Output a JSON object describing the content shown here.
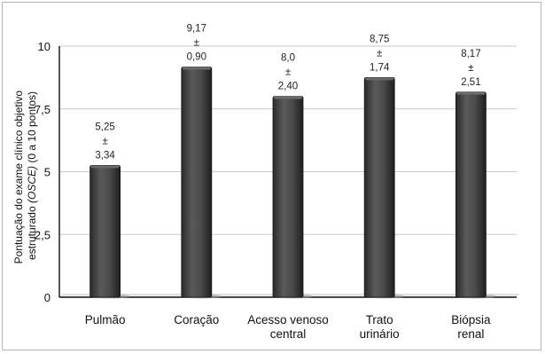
{
  "chart_data": {
    "type": "bar",
    "categories": [
      [
        "Pulmão"
      ],
      [
        "Coração"
      ],
      [
        "Acesso venoso",
        "central"
      ],
      [
        "Trato",
        "urinário"
      ],
      [
        "Biópsia",
        "renal"
      ]
    ],
    "values": [
      5.25,
      9.17,
      8.0,
      8.75,
      8.17
    ],
    "value_labels": [
      [
        "5,25",
        "±",
        "3,34"
      ],
      [
        "9,17",
        "±",
        "0,90"
      ],
      [
        "8,0",
        "±",
        "2,40"
      ],
      [
        "8,75",
        "±",
        "1,74"
      ],
      [
        "8,17",
        "±",
        "2,51"
      ]
    ],
    "ylabel": [
      "Pontuação do exame clínico objetivo",
      "estruturado (OSCE) (0 a 10 pontos)"
    ],
    "ylim": [
      0,
      10
    ],
    "yticks": [
      0,
      2.5,
      5,
      7.5,
      10
    ],
    "ytick_labels": [
      "0",
      "2,5",
      "5",
      "7,5",
      "10"
    ],
    "grid": true,
    "bar_color": "#3a3a3a",
    "grid_color": "#c9c9c9"
  }
}
